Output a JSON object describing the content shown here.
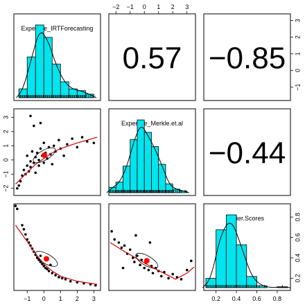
{
  "variables": [
    "Expertise_IRTForecasting",
    "Expertise_Merkle.et.al",
    "Brier.Scores"
  ],
  "correlations": {
    "r12": "0.57",
    "r13": "−0.85",
    "r23": "−0.44"
  },
  "axes": {
    "irt": {
      "range": [
        -1.8,
        3.4
      ],
      "ticks": [
        -1,
        0,
        1,
        2,
        3
      ],
      "tick_labels": [
        "−1",
        "0",
        "1",
        "2",
        "3"
      ]
    },
    "merkle": {
      "range": [
        -2.5,
        3.6
      ],
      "ticks": [
        -2,
        -1,
        0,
        1,
        2,
        3
      ],
      "tick_labels": [
        "−2",
        "−1",
        "0",
        "1",
        "2",
        "3"
      ]
    },
    "brier": {
      "range": [
        0.08,
        0.93
      ],
      "ticks": [
        0.2,
        0.4,
        0.6,
        0.8
      ],
      "tick_labels": [
        "0.2",
        "0.4",
        "0.6",
        "0.8"
      ]
    }
  },
  "colors": {
    "hist_fill": "#00e5ee",
    "fit_line": "#cc0000",
    "ellipse_center": "#ff0000",
    "points": "#000000"
  },
  "chart_data": [
    {
      "type": "bar",
      "name": "histogram-Expertise_IRTForecasting",
      "bin_edges": [
        -1.5,
        -1.0,
        -0.5,
        0.0,
        0.5,
        1.0,
        1.5,
        2.0,
        2.5,
        3.0
      ],
      "counts": [
        10,
        46,
        82,
        68,
        38,
        18,
        10,
        8,
        4
      ]
    },
    {
      "type": "bar",
      "name": "histogram-Expertise_Merkle.et.al",
      "bin_edges": [
        -2.5,
        -2.0,
        -1.5,
        -1.0,
        -0.5,
        0.0,
        0.5,
        1.0,
        1.5,
        2.0,
        2.5,
        3.0
      ],
      "counts": [
        6,
        12,
        30,
        60,
        82,
        68,
        52,
        32,
        10,
        4,
        2
      ]
    },
    {
      "type": "bar",
      "name": "histogram-Brier.Scores",
      "bin_edges": [
        0.1,
        0.2,
        0.3,
        0.4,
        0.5,
        0.6,
        0.7,
        0.8,
        0.9
      ],
      "counts": [
        10,
        62,
        78,
        46,
        12,
        2,
        0,
        1
      ]
    },
    {
      "type": "scatter",
      "name": "Expertise_Merkle.et.al vs Expertise_IRTForecasting",
      "x_var": "Expertise_IRTForecasting",
      "y_var": "Expertise_Merkle.et.al",
      "points": [
        [
          -1.6,
          -2.0
        ],
        [
          -1.5,
          -1.8
        ],
        [
          -1.4,
          -1.5
        ],
        [
          -1.3,
          -1.1
        ],
        [
          -1.2,
          -0.7
        ],
        [
          -1.1,
          -1.0
        ],
        [
          -1.0,
          -0.4
        ],
        [
          -1.0,
          0.3
        ],
        [
          -0.9,
          -0.8
        ],
        [
          -0.8,
          -0.1
        ],
        [
          -0.8,
          -0.5
        ],
        [
          -0.7,
          0.6
        ],
        [
          -0.6,
          -0.2
        ],
        [
          -0.5,
          0.2
        ],
        [
          -0.5,
          -0.9
        ],
        [
          -0.4,
          0.5
        ],
        [
          -0.3,
          0.0
        ],
        [
          -0.3,
          -0.4
        ],
        [
          -0.2,
          0.8
        ],
        [
          -0.1,
          0.3
        ],
        [
          0.0,
          -0.2
        ],
        [
          0.0,
          1.2
        ],
        [
          0.1,
          0.5
        ],
        [
          0.2,
          0.1
        ],
        [
          0.3,
          0.9
        ],
        [
          0.4,
          0.4
        ],
        [
          0.5,
          -0.3
        ],
        [
          0.6,
          1.0
        ],
        [
          0.7,
          0.6
        ],
        [
          0.9,
          1.4
        ],
        [
          1.0,
          0.8
        ],
        [
          1.2,
          0.3
        ],
        [
          1.4,
          1.1
        ],
        [
          1.7,
          1.5
        ],
        [
          2.0,
          0.9
        ],
        [
          2.3,
          1.6
        ],
        [
          2.6,
          1.3
        ],
        [
          3.0,
          1.2
        ],
        [
          -0.6,
          2.4
        ],
        [
          -0.2,
          2.6
        ],
        [
          -0.8,
          3.1
        ]
      ],
      "fit_line": [
        [
          -1.7,
          -1.7
        ],
        [
          -0.5,
          -0.3
        ],
        [
          0.0,
          0.1
        ],
        [
          0.5,
          0.5
        ],
        [
          1.0,
          0.8
        ],
        [
          2.0,
          1.2
        ],
        [
          3.2,
          1.6
        ]
      ]
    },
    {
      "type": "scatter",
      "name": "Brier.Scores vs Expertise_IRTForecasting",
      "x_var": "Expertise_IRTForecasting",
      "y_var": "Brier.Scores",
      "points": [
        [
          -1.7,
          0.91
        ],
        [
          -1.6,
          0.88
        ],
        [
          -1.3,
          0.72
        ],
        [
          -1.2,
          0.68
        ],
        [
          -1.1,
          0.63
        ],
        [
          -1.0,
          0.58
        ],
        [
          -0.9,
          0.55
        ],
        [
          -0.8,
          0.52
        ],
        [
          -0.7,
          0.49
        ],
        [
          -0.6,
          0.46
        ],
        [
          -0.5,
          0.43
        ],
        [
          -0.4,
          0.4
        ],
        [
          -0.3,
          0.38
        ],
        [
          -0.2,
          0.36
        ],
        [
          -0.1,
          0.34
        ],
        [
          0.0,
          0.32
        ],
        [
          0.1,
          0.3
        ],
        [
          0.2,
          0.29
        ],
        [
          0.3,
          0.27
        ],
        [
          0.5,
          0.25
        ],
        [
          0.7,
          0.23
        ],
        [
          0.9,
          0.21
        ],
        [
          1.1,
          0.2
        ],
        [
          1.3,
          0.19
        ],
        [
          1.6,
          0.17
        ],
        [
          2.0,
          0.16
        ],
        [
          2.4,
          0.15
        ],
        [
          2.8,
          0.14
        ],
        [
          3.1,
          0.13
        ],
        [
          -0.2,
          0.42
        ],
        [
          0.4,
          0.33
        ]
      ],
      "fit_line": [
        [
          -1.7,
          0.72
        ],
        [
          -1.0,
          0.56
        ],
        [
          -0.5,
          0.44
        ],
        [
          0.0,
          0.34
        ],
        [
          0.5,
          0.27
        ],
        [
          1.0,
          0.22
        ],
        [
          2.0,
          0.17
        ],
        [
          3.2,
          0.14
        ]
      ]
    },
    {
      "type": "scatter",
      "name": "Brier.Scores vs Expertise_Merkle.et.al",
      "x_var": "Expertise_Merkle.et.al",
      "y_var": "Brier.Scores",
      "points": [
        [
          -2.3,
          0.66
        ],
        [
          -2.1,
          0.58
        ],
        [
          -1.8,
          0.55
        ],
        [
          -1.6,
          0.5
        ],
        [
          -1.4,
          0.52
        ],
        [
          -1.2,
          0.44
        ],
        [
          -1.0,
          0.48
        ],
        [
          -0.8,
          0.4
        ],
        [
          -0.7,
          0.36
        ],
        [
          -0.5,
          0.42
        ],
        [
          -0.3,
          0.33
        ],
        [
          -0.2,
          0.38
        ],
        [
          0.0,
          0.3
        ],
        [
          0.1,
          0.35
        ],
        [
          0.3,
          0.28
        ],
        [
          0.5,
          0.32
        ],
        [
          0.6,
          0.25
        ],
        [
          0.8,
          0.3
        ],
        [
          1.0,
          0.27
        ],
        [
          1.2,
          0.22
        ],
        [
          1.4,
          0.26
        ],
        [
          1.7,
          0.2
        ],
        [
          2.0,
          0.24
        ],
        [
          2.3,
          0.21
        ],
        [
          2.6,
          0.19
        ],
        [
          3.0,
          0.28
        ],
        [
          3.3,
          0.37
        ],
        [
          -0.6,
          0.62
        ],
        [
          0.4,
          0.55
        ],
        [
          -1.5,
          0.3
        ]
      ],
      "fit_line": [
        [
          -2.4,
          0.55
        ],
        [
          -1.5,
          0.47
        ],
        [
          -0.5,
          0.39
        ],
        [
          0.5,
          0.31
        ],
        [
          1.5,
          0.24
        ],
        [
          2.2,
          0.19
        ],
        [
          3.0,
          0.25
        ],
        [
          3.5,
          0.31
        ]
      ]
    }
  ]
}
